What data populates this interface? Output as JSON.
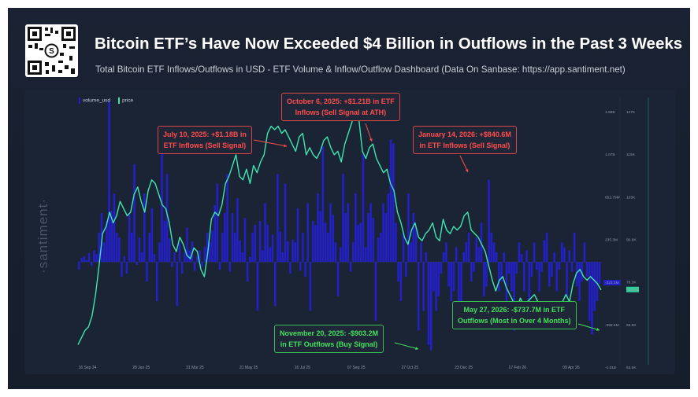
{
  "header": {
    "title": "Bitcoin ETF’s Have Now Exceeded $4 Billion in Outflows in the Past 3 Weeks",
    "subtitle": "Total Bitcoin ETF Inflows/Outflows in USD - ETF Volume & Inflow/Outflow Dashboard (Data On Sanbase: https://app.santiment.net)",
    "qr_logo": "S",
    "watermark": "·santiment·"
  },
  "colors": {
    "volume": "#2320c8",
    "price": "#3ee6b0",
    "red_annotation": "#ff4d4d",
    "green_annotation": "#41e15c",
    "background": "#1b2435"
  },
  "chart_data": {
    "type": "bar",
    "title": "Bitcoin ETF’s Have Now Exceeded $4 Billion in Outflows in the Past 3 Weeks",
    "x_tick_labels": [
      "16 Sep 24",
      "28 Jan 25",
      "31 Mar 25",
      "21 May 25",
      "16 Jul 25",
      "07 Sep 25",
      "27 Oct 25",
      "23 Dec 25",
      "17 Feb 26",
      "09 Apr 26"
    ],
    "legend": [
      "volume_usd",
      "price"
    ],
    "legend_position": "top-left",
    "volume_axis_ticks": [
      "1.68B",
      "1.07B",
      "652.79M",
      "235.3M",
      "-182.15M",
      "-599.6M",
      "-1.01B"
    ],
    "price_axis_ticks": [
      "127K",
      "115K",
      "103K",
      "90.6K",
      "78.3K",
      "65.9K",
      "53.5K"
    ],
    "ylim_volume": [
      -1010000000,
      1680000000
    ],
    "ylim_price": [
      53500,
      127000
    ],
    "current_volume_label": "-223.3M",
    "current_price_label": "73.3K",
    "series": [
      {
        "name": "volume_usd",
        "unit": "USD",
        "values": [
          -80,
          40,
          60,
          20,
          90,
          -40,
          120,
          80,
          300,
          500,
          200,
          420,
          1650,
          520,
          700,
          300,
          250,
          -150,
          60,
          -120,
          500,
          300,
          1000,
          -30,
          250,
          100,
          700,
          -200,
          300,
          550,
          80,
          -400,
          200,
          1300,
          420,
          900,
          240,
          -50,
          100,
          -450,
          200,
          -120,
          100,
          350,
          120,
          210,
          -90,
          60,
          120,
          -50,
          150,
          300,
          200,
          320,
          580,
          800,
          -80,
          300,
          500,
          900,
          -100,
          500,
          300,
          650,
          220,
          100,
          450,
          -200,
          50,
          300,
          380,
          -500,
          420,
          120,
          600,
          380,
          150,
          280,
          -450,
          900,
          310,
          100,
          800,
          210,
          -120,
          230,
          200,
          550,
          -90,
          300,
          -150,
          600,
          -500,
          420,
          380,
          700,
          520,
          1180,
          400,
          300,
          600,
          480,
          200,
          -350,
          150,
          900,
          500,
          600,
          -100,
          200,
          700,
          380,
          400,
          1100,
          150,
          500,
          600,
          450,
          -600,
          250,
          300,
          600,
          500,
          700,
          1250,
          1210,
          400,
          -200,
          -400,
          300,
          -150,
          700,
          200,
          500,
          350,
          -700,
          200,
          -500,
          100,
          -850,
          -903,
          -300,
          -500,
          -350,
          -120,
          100,
          200,
          -250,
          -400,
          -300,
          150,
          -600,
          -400,
          100,
          200,
          300,
          -200,
          -100,
          250,
          150,
          400,
          -350,
          -250,
          840,
          300,
          200,
          100,
          -300,
          -200,
          100,
          -450,
          -120,
          -300,
          -700,
          -120,
          200,
          80,
          -300,
          120,
          -500,
          -150,
          200,
          -80,
          -300,
          -100,
          220,
          300,
          -250,
          -150,
          100,
          -300,
          -80,
          200,
          150,
          -350,
          120,
          -100,
          300,
          -250,
          -400,
          -200,
          200,
          -150,
          -600,
          -738,
          -500,
          -400,
          -223
        ],
        "values_unit": "millions USD"
      },
      {
        "name": "price",
        "unit": "USD",
        "values": [
          58000,
          60000,
          62000,
          63000,
          66000,
          72000,
          80000,
          89000,
          91000,
          95000,
          92000,
          94000,
          98000,
          96000,
          94000,
          95000,
          100000,
          102000,
          98000,
          95000,
          101000,
          104000,
          103000,
          100000,
          97000,
          96000,
          92000,
          86000,
          84000,
          88000,
          86000,
          83000,
          82000,
          85000,
          84000,
          79000,
          77000,
          84000,
          93000,
          95000,
          94000,
          97000,
          103000,
          105000,
          108000,
          111000,
          105000,
          104000,
          107000,
          103000,
          108000,
          106000,
          109000,
          111000,
          117000,
          119000,
          118000,
          119000,
          117000,
          118000,
          116000,
          114000,
          112000,
          116000,
          117000,
          111000,
          113000,
          111000,
          110000,
          112000,
          115000,
          116000,
          113000,
          111000,
          112000,
          109000,
          114000,
          117000,
          120000,
          124000,
          121000,
          112000,
          110000,
          113000,
          114000,
          110000,
          108000,
          106000,
          107000,
          103000,
          101000,
          95000,
          92000,
          88000,
          86000,
          90000,
          92000,
          88000,
          87000,
          89000,
          90000,
          92000,
          88000,
          87000,
          93000,
          90000,
          89000,
          91000,
          90000,
          91000,
          94000,
          95000,
          90000,
          89000,
          88000,
          86000,
          84000,
          80000,
          76000,
          73000,
          76000,
          77000,
          74000,
          72000,
          70000,
          68000,
          71000,
          69000,
          70000,
          71000,
          72000,
          70000,
          69000,
          68000,
          66000,
          64000,
          66000,
          68000,
          70000,
          72000,
          70000,
          75000,
          78000,
          79000,
          77000,
          76000,
          77000,
          76000,
          75000,
          73300
        ]
      }
    ],
    "annotations": [
      {
        "text_line1": "July 10, 2025: +$1.18B in",
        "text_line2": "ETF Inflows (Sell Signal)",
        "kind": "inflow",
        "value_usd": 1180000000
      },
      {
        "text_line1": "October 6, 2025: +$1.21B in ETF",
        "text_line2": "Inflows (Sell Signal at ATH)",
        "kind": "inflow",
        "value_usd": 1210000000
      },
      {
        "text_line1": "January 14, 2026: +$840.6M",
        "text_line2": "in ETF Inflows (Sell Signal)",
        "kind": "inflow",
        "value_usd": 840600000
      },
      {
        "text_line1": "November 20, 2025: -$903.2M",
        "text_line2": "in ETF Outflows (Buy Signal)",
        "kind": "outflow",
        "value_usd": -903200000
      },
      {
        "text_line1": "May 27, 2026: -$737.7M in ETF",
        "text_line2": "Outflows (Most in Over 4 Months)",
        "kind": "outflow",
        "value_usd": -737700000
      }
    ]
  }
}
